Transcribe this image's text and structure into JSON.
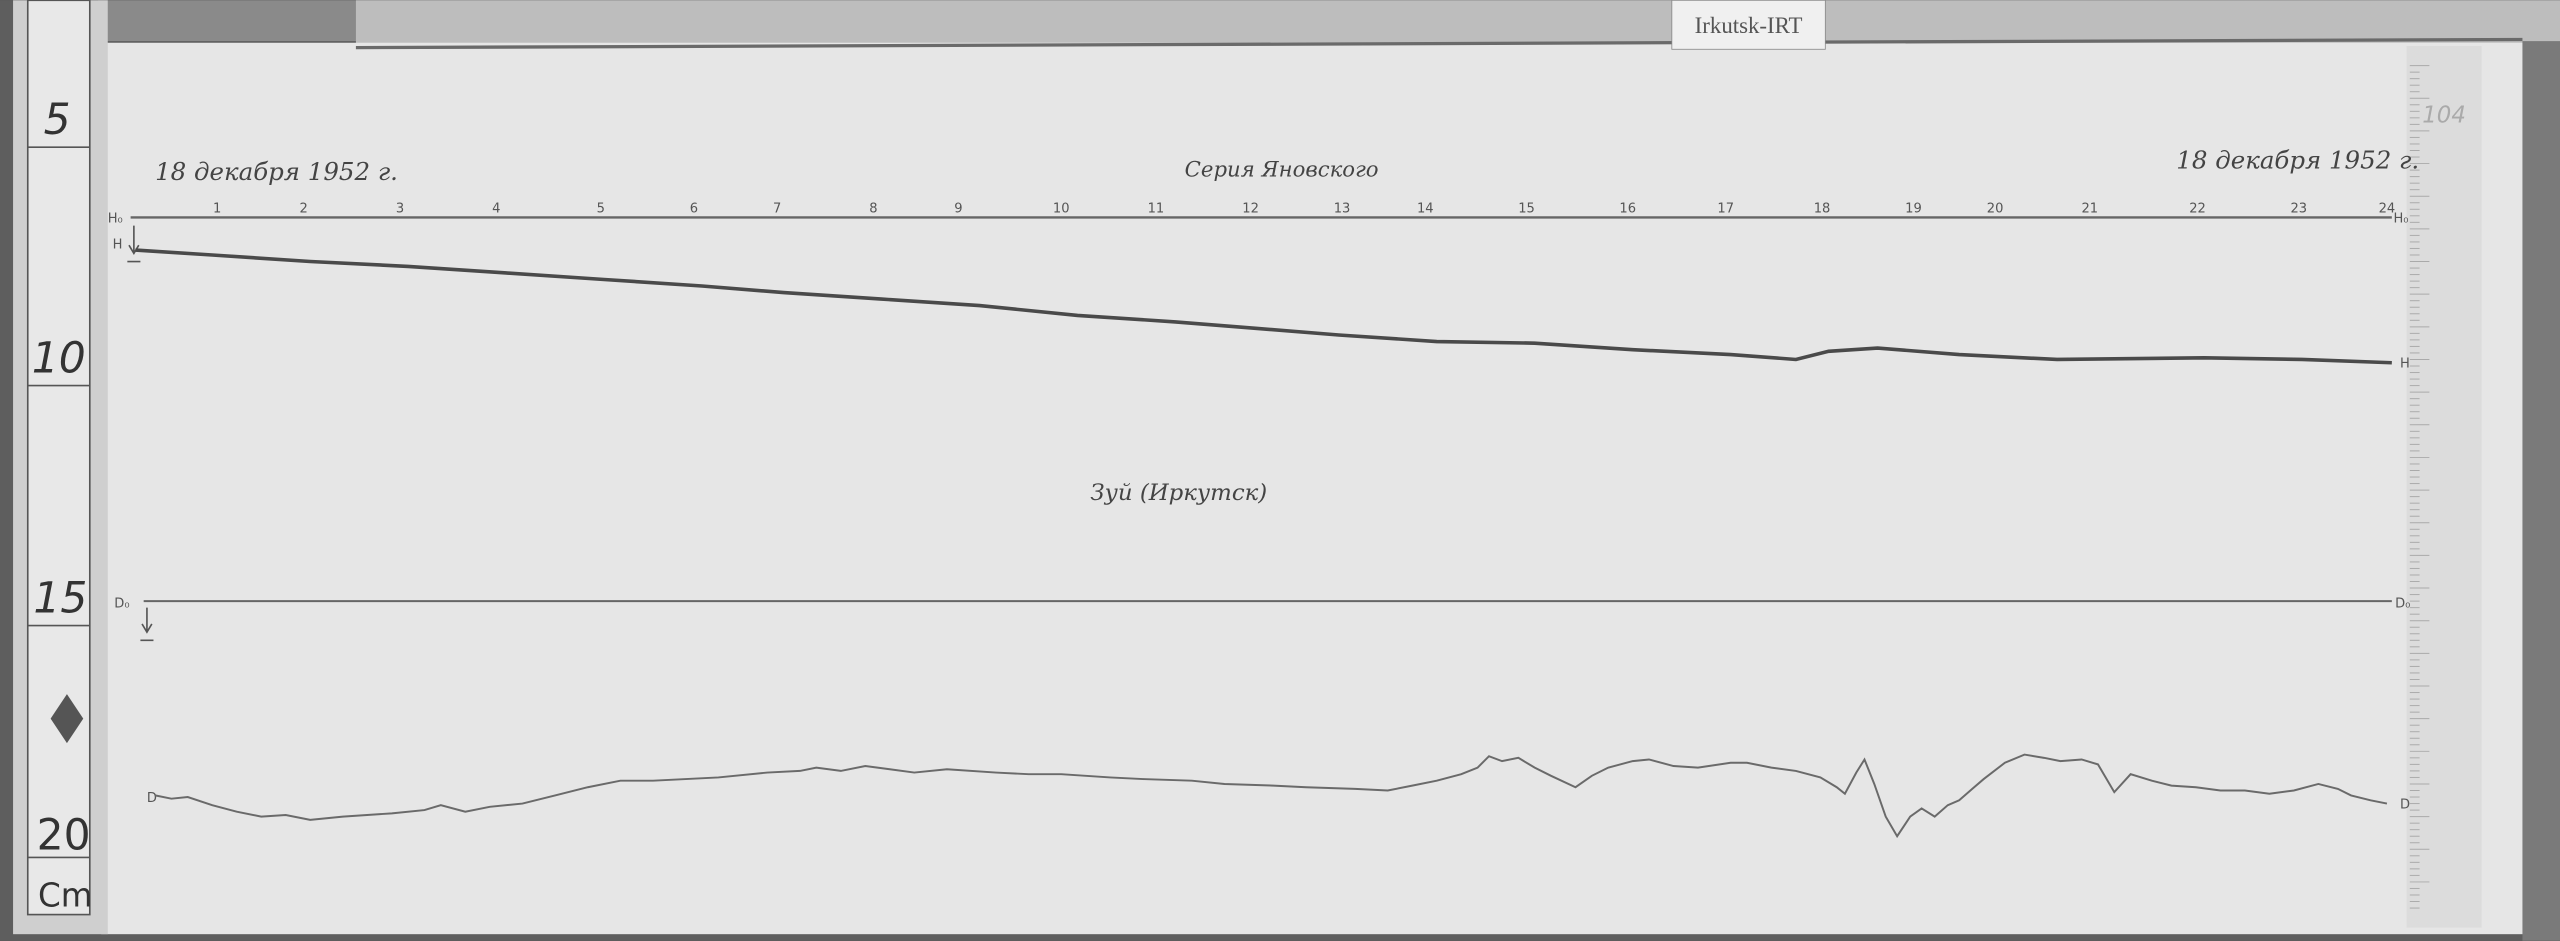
{
  "archive_label": "Irkutsk-IRT",
  "header": {
    "date_left": "18 декабря 1952 г.",
    "series": "Серия Яновского",
    "date_right": "18 декабря 1952 г."
  },
  "station": "Зуй (Иркутск)",
  "sheet_number": "104",
  "hour_labels": [
    "1",
    "2",
    "3",
    "4",
    "5",
    "6",
    "7",
    "8",
    "9",
    "10",
    "11",
    "12",
    "13",
    "14",
    "15",
    "16",
    "17",
    "18",
    "19",
    "20",
    "21",
    "22",
    "23",
    "24"
  ],
  "trace_labels": {
    "h_baseline": "H₀",
    "h_trace": "H",
    "d_baseline": "D₀",
    "d_trace": "D"
  },
  "ruler": {
    "labels": [
      "5",
      "10",
      "15",
      "20"
    ],
    "unit": "Cm"
  },
  "colors": {
    "paper": "#e6e6e6",
    "ink": "#555555",
    "trace": "#4a4a4a",
    "background": "#5a5a5a"
  }
}
